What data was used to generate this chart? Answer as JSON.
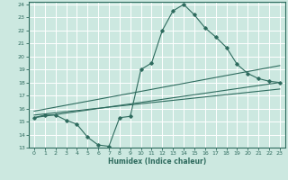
{
  "xlabel": "Humidex (Indice chaleur)",
  "bg_color": "#cce8e0",
  "grid_color": "#ffffff",
  "line_color": "#2e6b5e",
  "xlim": [
    -0.5,
    23.5
  ],
  "ylim": [
    13,
    24.2
  ],
  "xticks": [
    0,
    1,
    2,
    3,
    4,
    5,
    6,
    7,
    8,
    9,
    10,
    11,
    12,
    13,
    14,
    15,
    16,
    17,
    18,
    19,
    20,
    21,
    22,
    23
  ],
  "yticks": [
    13,
    14,
    15,
    16,
    17,
    18,
    19,
    20,
    21,
    22,
    23,
    24
  ],
  "curve1_x": [
    0,
    1,
    2,
    3,
    4,
    5,
    6,
    7,
    8,
    9,
    10,
    11,
    12,
    13,
    14,
    15,
    16,
    17,
    18,
    19,
    20,
    21,
    22,
    23
  ],
  "curve1_y": [
    15.3,
    15.5,
    15.5,
    15.1,
    14.8,
    13.8,
    13.2,
    13.1,
    15.3,
    15.4,
    19.0,
    19.5,
    22.0,
    23.5,
    24.0,
    23.2,
    22.2,
    21.5,
    20.7,
    19.4,
    18.7,
    18.3,
    18.1,
    18.0
  ],
  "line1_x": [
    0,
    23
  ],
  "line1_y": [
    15.3,
    18.0
  ],
  "line2_x": [
    0,
    23
  ],
  "line2_y": [
    15.5,
    17.5
  ],
  "line3_x": [
    0,
    23
  ],
  "line3_y": [
    15.8,
    19.3
  ]
}
